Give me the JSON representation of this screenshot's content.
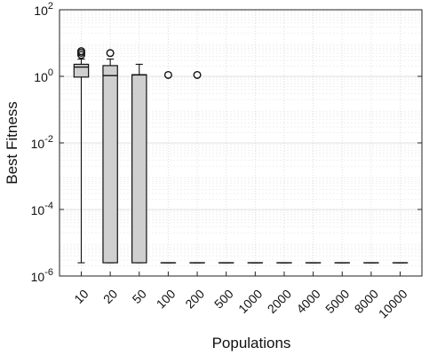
{
  "chart_data": {
    "type": "boxplot",
    "xlabel": "Populations",
    "ylabel": "Best Fitness",
    "yscale": "log",
    "ylim": [
      1e-06,
      100
    ],
    "yticks": [
      {
        "value": 1e-06,
        "base": "10",
        "exp": "-6"
      },
      {
        "value": 0.0001,
        "base": "10",
        "exp": "-4"
      },
      {
        "value": 0.01,
        "base": "10",
        "exp": "-2"
      },
      {
        "value": 1,
        "base": "10",
        "exp": "0"
      },
      {
        "value": 100,
        "base": "10",
        "exp": "2"
      }
    ],
    "grid": true,
    "categories": [
      "10",
      "20",
      "50",
      "100",
      "200",
      "500",
      "1000",
      "2000",
      "4000",
      "5000",
      "8000",
      "10000"
    ],
    "boxes": [
      {
        "category": "10",
        "whisker_low": 2.5e-06,
        "q1": 0.95,
        "median": 1.9,
        "q3": 2.3,
        "whisker_high": 3.3,
        "outliers": [
          4.4,
          5.1,
          5.7
        ]
      },
      {
        "category": "20",
        "whisker_low": 2.5e-06,
        "q1": 2.5e-06,
        "median": 1.05,
        "q3": 2.1,
        "whisker_high": 3.3,
        "outliers": [
          5.0
        ]
      },
      {
        "category": "50",
        "whisker_low": 2.5e-06,
        "q1": 2.5e-06,
        "median": 1.1,
        "q3": 1.12,
        "whisker_high": 2.3,
        "outliers": []
      },
      {
        "category": "100",
        "whisker_low": 2.5e-06,
        "q1": 2.5e-06,
        "median": 2.5e-06,
        "q3": 2.5e-06,
        "whisker_high": 2.5e-06,
        "outliers": [
          1.1
        ]
      },
      {
        "category": "200",
        "whisker_low": 2.5e-06,
        "q1": 2.5e-06,
        "median": 2.5e-06,
        "q3": 2.5e-06,
        "whisker_high": 2.5e-06,
        "outliers": [
          1.1
        ]
      },
      {
        "category": "500",
        "whisker_low": 2.5e-06,
        "q1": 2.5e-06,
        "median": 2.5e-06,
        "q3": 2.5e-06,
        "whisker_high": 2.5e-06,
        "outliers": []
      },
      {
        "category": "1000",
        "whisker_low": 2.5e-06,
        "q1": 2.5e-06,
        "median": 2.5e-06,
        "q3": 2.5e-06,
        "whisker_high": 2.5e-06,
        "outliers": []
      },
      {
        "category": "2000",
        "whisker_low": 2.5e-06,
        "q1": 2.5e-06,
        "median": 2.5e-06,
        "q3": 2.5e-06,
        "whisker_high": 2.5e-06,
        "outliers": []
      },
      {
        "category": "4000",
        "whisker_low": 2.5e-06,
        "q1": 2.5e-06,
        "median": 2.5e-06,
        "q3": 2.5e-06,
        "whisker_high": 2.5e-06,
        "outliers": []
      },
      {
        "category": "5000",
        "whisker_low": 2.5e-06,
        "q1": 2.5e-06,
        "median": 2.5e-06,
        "q3": 2.5e-06,
        "whisker_high": 2.5e-06,
        "outliers": []
      },
      {
        "category": "8000",
        "whisker_low": 2.5e-06,
        "q1": 2.5e-06,
        "median": 2.5e-06,
        "q3": 2.5e-06,
        "whisker_high": 2.5e-06,
        "outliers": []
      },
      {
        "category": "10000",
        "whisker_low": 2.5e-06,
        "q1": 2.5e-06,
        "median": 2.5e-06,
        "q3": 2.5e-06,
        "whisker_high": 2.5e-06,
        "outliers": []
      }
    ],
    "colors": {
      "box_fill": "#cfcfcf",
      "line": "#111111",
      "grid": "#d9d9d9"
    }
  }
}
